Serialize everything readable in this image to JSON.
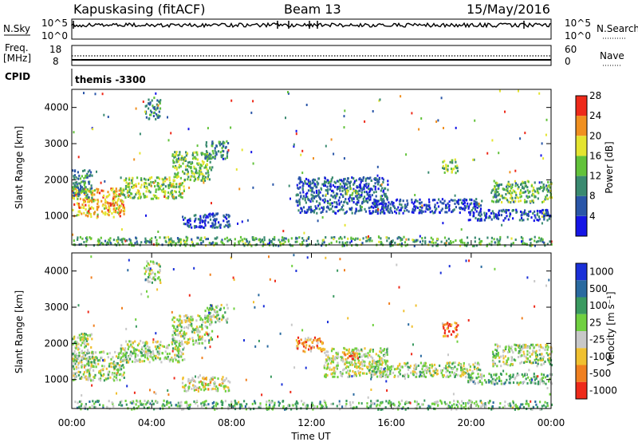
{
  "header": {
    "radar": "Kapuskasing (fitACF)",
    "beam": "Beam 13",
    "date": "15/May/2016"
  },
  "sky_panel": {
    "left_label": "N.Sky",
    "left_ticks": [
      "10^5",
      "10^0"
    ],
    "right_label": "N.Search",
    "right_ticks": [
      "10^5",
      "10^0"
    ]
  },
  "freq_panel": {
    "left_label_line1": "Freq.",
    "left_label_line2": "[MHz]",
    "left_ticks": [
      "18",
      "8"
    ],
    "right_label": "Nave",
    "right_ticks": [
      "60",
      "0"
    ]
  },
  "cpid": {
    "label": "CPID",
    "value": "themis -3300"
  },
  "chart_data": [
    {
      "type": "heatmap",
      "name": "Power",
      "ylabel": "Slant Range [km]",
      "ylim": [
        200,
        4500
      ],
      "y_ticks": [
        "1000",
        "2000",
        "3000",
        "4000"
      ],
      "y_tick_values": [
        1000,
        2000,
        3000,
        4000
      ],
      "colorbar_label": "Power [dB]",
      "colorbar_ticks": [
        "4",
        "8",
        "12",
        "16",
        "20",
        "24",
        "28"
      ],
      "colorbar_colors": [
        "#1515e6",
        "#2a56a8",
        "#3a8a70",
        "#62c23a",
        "#e4e430",
        "#f09020",
        "#ee2a1a"
      ],
      "echo_regions": [
        {
          "t0": 0.0,
          "t1": 2.6,
          "r0": 1000,
          "r1": 1800,
          "level": 0.75
        },
        {
          "t0": 0.0,
          "t1": 1.0,
          "r0": 1500,
          "r1": 2300,
          "level": 0.35
        },
        {
          "t0": 2.4,
          "t1": 5.6,
          "r0": 1500,
          "r1": 2100,
          "level": 0.55
        },
        {
          "t0": 5.0,
          "t1": 7.0,
          "r0": 2000,
          "r1": 2800,
          "level": 0.5
        },
        {
          "t0": 6.6,
          "t1": 7.8,
          "r0": 2600,
          "r1": 3100,
          "level": 0.3
        },
        {
          "t0": 3.6,
          "t1": 4.4,
          "r0": 3700,
          "r1": 4300,
          "level": 0.3
        },
        {
          "t0": 5.5,
          "t1": 7.9,
          "r0": 700,
          "r1": 1100,
          "level": 0.15
        },
        {
          "t0": 11.2,
          "t1": 15.8,
          "r0": 1100,
          "r1": 2100,
          "level": 0.2
        },
        {
          "t0": 13.6,
          "t1": 14.3,
          "r0": 1600,
          "r1": 1800,
          "level": 0.6
        },
        {
          "t0": 15.0,
          "t1": 20.5,
          "r0": 1100,
          "r1": 1500,
          "level": 0.1
        },
        {
          "t0": 18.5,
          "t1": 19.3,
          "r0": 2200,
          "r1": 2600,
          "level": 0.5
        },
        {
          "t0": 21.0,
          "t1": 24.0,
          "r0": 1400,
          "r1": 2000,
          "level": 0.45
        },
        {
          "t0": 19.8,
          "t1": 24.0,
          "r0": 900,
          "r1": 1200,
          "level": 0.15
        },
        {
          "t0": 0.0,
          "t1": 24.0,
          "r0": 200,
          "r1": 450,
          "level": 0.4
        }
      ]
    },
    {
      "type": "heatmap",
      "name": "Velocity",
      "ylabel": "Slant Range [km]",
      "xlabel": "Time UT",
      "ylim": [
        200,
        4500
      ],
      "y_ticks": [
        "1000",
        "2000",
        "3000",
        "4000"
      ],
      "y_tick_values": [
        1000,
        2000,
        3000,
        4000
      ],
      "x_ticks": [
        "00:00",
        "04:00",
        "08:00",
        "12:00",
        "16:00",
        "20:00",
        "00:00"
      ],
      "x_tick_values": [
        0,
        4,
        8,
        12,
        16,
        20,
        24
      ],
      "colorbar_label": "Velocity [m s⁻¹]",
      "colorbar_ticks": [
        "1000",
        "500",
        "100",
        "25",
        "-25",
        "-100",
        "-500",
        "-1000"
      ],
      "colorbar_colors": [
        "#1a30d8",
        "#2a6aa0",
        "#3a9a60",
        "#70d040",
        "#c8c8c8",
        "#f0c030",
        "#f08020",
        "#ee2a1a"
      ],
      "echo_regions": [
        {
          "t0": 0.0,
          "t1": 2.6,
          "r0": 1000,
          "r1": 1800,
          "level": 0.5
        },
        {
          "t0": 0.0,
          "t1": 1.0,
          "r0": 1500,
          "r1": 2300,
          "level": 0.5
        },
        {
          "t0": 2.4,
          "t1": 5.6,
          "r0": 1500,
          "r1": 2100,
          "level": 0.5
        },
        {
          "t0": 5.0,
          "t1": 7.0,
          "r0": 2000,
          "r1": 2800,
          "level": 0.5
        },
        {
          "t0": 6.6,
          "t1": 7.8,
          "r0": 2600,
          "r1": 3100,
          "level": 0.5
        },
        {
          "t0": 3.6,
          "t1": 4.4,
          "r0": 3700,
          "r1": 4300,
          "level": 0.5
        },
        {
          "t0": 5.5,
          "t1": 7.9,
          "r0": 700,
          "r1": 1100,
          "level": 0.6
        },
        {
          "t0": 11.2,
          "t1": 12.6,
          "r0": 1800,
          "r1": 2200,
          "level": 0.85
        },
        {
          "t0": 12.6,
          "t1": 15.8,
          "r0": 1100,
          "r1": 1900,
          "level": 0.55
        },
        {
          "t0": 13.6,
          "t1": 14.3,
          "r0": 1600,
          "r1": 1800,
          "level": 0.85
        },
        {
          "t0": 15.0,
          "t1": 20.5,
          "r0": 1100,
          "r1": 1500,
          "level": 0.5
        },
        {
          "t0": 18.5,
          "t1": 19.3,
          "r0": 2200,
          "r1": 2600,
          "level": 0.85
        },
        {
          "t0": 21.0,
          "t1": 24.0,
          "r0": 1400,
          "r1": 2000,
          "level": 0.5
        },
        {
          "t0": 19.8,
          "t1": 24.0,
          "r0": 900,
          "r1": 1200,
          "level": 0.4
        },
        {
          "t0": 0.0,
          "t1": 24.0,
          "r0": 200,
          "r1": 450,
          "level": 0.4
        }
      ]
    }
  ]
}
